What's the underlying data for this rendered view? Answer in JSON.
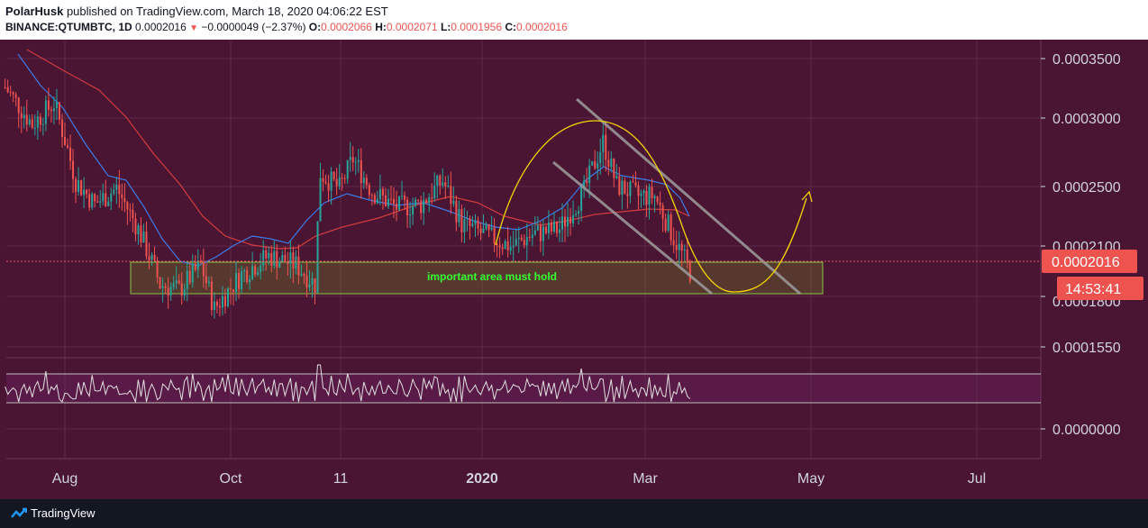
{
  "header": {
    "author": "PolarHusk",
    "published_text": "published on TradingView.com, March 18, 2020 04:06:22 EST",
    "symbol": "BINANCE:QTUMBTC, 1D",
    "last_price": "0.0002016",
    "change_arrow": "▼",
    "change": "−0.0000049 (−2.37%)",
    "o_label": "O:",
    "o_value": "0.0002066",
    "h_label": "H:",
    "h_value": "0.0002071",
    "l_label": "L:",
    "l_value": "0.0001956",
    "c_label": "C:",
    "c_value": "0.0002016"
  },
  "price_axis": {
    "ticks": [
      "0.0003500",
      "0.0003000",
      "0.0002500",
      "0.0002100",
      "0.0001800",
      "0.0001550"
    ],
    "current_price": "0.0002016",
    "countdown": "14:53:41"
  },
  "rsi_axis": {
    "ticks": [
      "0.0000000"
    ]
  },
  "time_axis": {
    "ticks": [
      "Aug",
      "Oct",
      "11",
      "2020",
      "Mar",
      "May",
      "Jul"
    ]
  },
  "annotation": {
    "label": "important area must hold"
  },
  "footer": {
    "brand": "TradingView"
  },
  "colors": {
    "background": "#4a1433",
    "rsi_band": "#5a1a48",
    "grid": "#5e2a4a",
    "up_candle": "#26a69a",
    "down_candle": "#ef5350",
    "ema_fast": "#3d7be8",
    "ema_slow": "#d23c3c",
    "support_zone": "#8bc34a",
    "channel": "#9e9e9e",
    "projection": "#f2d600",
    "price_tag": "#ef5350",
    "annotation_text": "#33ff33"
  },
  "chart_data": {
    "type": "candlestick",
    "series_kind": "price",
    "x_ticks": [
      "Aug",
      "Oct",
      "11",
      "2020",
      "Mar",
      "May",
      "Jul"
    ],
    "y_ticks": [
      "0.0003500",
      "0.0003000",
      "0.0002500",
      "0.0002100",
      "0.0001800",
      "0.0001550"
    ],
    "y_scale": "log",
    "close_path": [
      [
        "2019-07-10",
        0.000325
      ],
      [
        "2019-07-20",
        0.000295
      ],
      [
        "2019-07-28",
        0.000312
      ],
      [
        "2019-08-05",
        0.000255
      ],
      [
        "2019-08-12",
        0.00024
      ],
      [
        "2019-08-20",
        0.00025
      ],
      [
        "2019-08-28",
        0.000225
      ],
      [
        "2019-09-05",
        0.000195
      ],
      [
        "2019-09-12",
        0.000192
      ],
      [
        "2019-09-20",
        0.000205
      ],
      [
        "2019-09-25",
        0.000183
      ],
      [
        "2019-10-05",
        0.0002
      ],
      [
        "2019-10-15",
        0.00021
      ],
      [
        "2019-10-25",
        0.000205
      ],
      [
        "2019-11-01",
        0.000195
      ],
      [
        "2019-11-03",
        0.00026
      ],
      [
        "2019-11-10",
        0.00025
      ],
      [
        "2019-11-15",
        0.00027
      ],
      [
        "2019-11-22",
        0.000248
      ],
      [
        "2019-12-01",
        0.000238
      ],
      [
        "2019-12-10",
        0.00024
      ],
      [
        "2019-12-18",
        0.000255
      ],
      [
        "2019-12-25",
        0.000228
      ],
      [
        "2020-01-05",
        0.00022
      ],
      [
        "2020-01-12",
        0.000215
      ],
      [
        "2020-01-20",
        0.000222
      ],
      [
        "2020-01-30",
        0.000225
      ],
      [
        "2020-02-08",
        0.000248
      ],
      [
        "2020-02-15",
        0.000282
      ],
      [
        "2020-02-20",
        0.000252
      ],
      [
        "2020-02-28",
        0.000245
      ],
      [
        "2020-03-05",
        0.000245
      ],
      [
        "2020-03-12",
        0.00022
      ],
      [
        "2020-03-18",
        0.0002016
      ]
    ],
    "indicator": {
      "type": "rsi_like",
      "band": "upper/lower lines"
    }
  }
}
